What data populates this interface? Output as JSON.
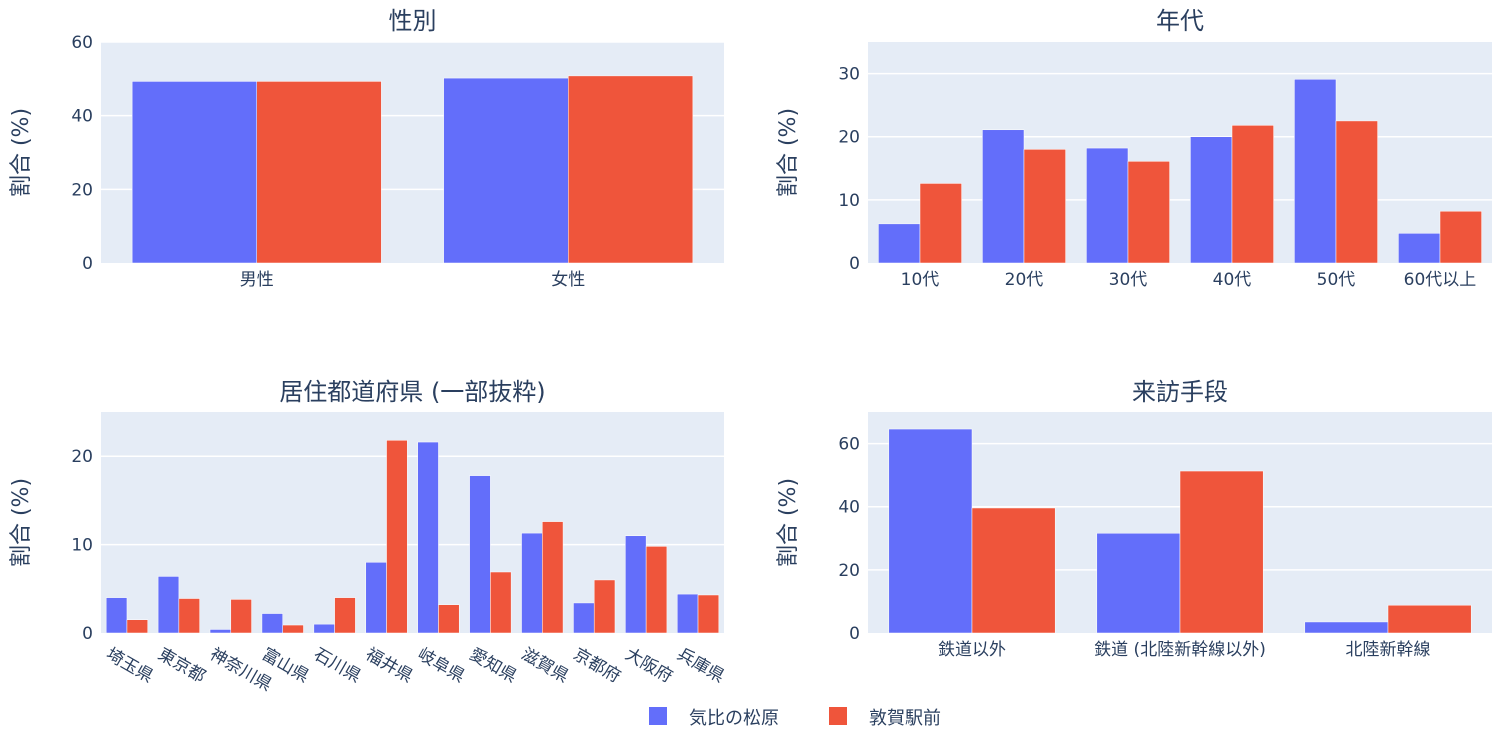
{
  "colors": {
    "series1": "#636efa",
    "series2": "#ef553b",
    "plot_bg": "#e5ecf6",
    "grid": "#ffffff",
    "text": "#2a3f5f"
  },
  "legend": [
    {
      "name": "気比の松原",
      "color": "#636efa"
    },
    {
      "name": "敦賀駅前",
      "color": "#ef553b"
    }
  ],
  "chart_data": [
    {
      "type": "bar",
      "title": "性別",
      "ylabel": "割合 (%)",
      "categories": [
        "男性",
        "女性"
      ],
      "ylim": [
        0,
        60
      ],
      "yticks": [
        0,
        20,
        40,
        60
      ],
      "tick_angle": 0,
      "series": [
        {
          "name": "気比の松原",
          "values": [
            49.3,
            50.2
          ]
        },
        {
          "name": "敦賀駅前",
          "values": [
            49.3,
            50.8
          ]
        }
      ]
    },
    {
      "type": "bar",
      "title": "年代",
      "ylabel": "割合 (%)",
      "categories": [
        "10代",
        "20代",
        "30代",
        "40代",
        "50代",
        "60代以上"
      ],
      "ylim": [
        0,
        35
      ],
      "yticks": [
        0,
        10,
        20,
        30
      ],
      "tick_angle": 0,
      "series": [
        {
          "name": "気比の松原",
          "values": [
            6.2,
            21.1,
            18.2,
            20.0,
            29.1,
            4.7
          ]
        },
        {
          "name": "敦賀駅前",
          "values": [
            12.6,
            18.0,
            16.1,
            21.8,
            22.5,
            8.2
          ]
        }
      ]
    },
    {
      "type": "bar",
      "title": "居住都道府県 (一部抜粋)",
      "ylabel": "割合 (%)",
      "categories": [
        "埼玉県",
        "東京都",
        "神奈川県",
        "富山県",
        "石川県",
        "福井県",
        "岐阜県",
        "愛知県",
        "滋賀県",
        "京都府",
        "大阪府",
        "兵庫県"
      ],
      "ylim": [
        0,
        25
      ],
      "yticks": [
        0,
        10,
        20
      ],
      "tick_angle": 30,
      "series": [
        {
          "name": "気比の松原",
          "values": [
            4.0,
            6.4,
            0.4,
            2.2,
            1.0,
            8.0,
            21.6,
            17.8,
            11.3,
            3.4,
            11.0,
            4.4
          ]
        },
        {
          "name": "敦賀駅前",
          "values": [
            1.5,
            3.9,
            3.8,
            0.9,
            4.0,
            21.8,
            3.2,
            6.9,
            12.6,
            6.0,
            9.8,
            4.3
          ]
        }
      ]
    },
    {
      "type": "bar",
      "title": "来訪手段",
      "ylabel": "割合 (%)",
      "categories": [
        "鉄道以外",
        "鉄道 (北陸新幹線以外)",
        "北陸新幹線"
      ],
      "ylim": [
        0,
        70
      ],
      "yticks": [
        0,
        20,
        40,
        60
      ],
      "tick_angle": 0,
      "series": [
        {
          "name": "気比の松原",
          "values": [
            64.6,
            31.6,
            3.5
          ]
        },
        {
          "name": "敦賀駅前",
          "values": [
            39.6,
            51.3,
            8.8
          ]
        }
      ]
    }
  ]
}
